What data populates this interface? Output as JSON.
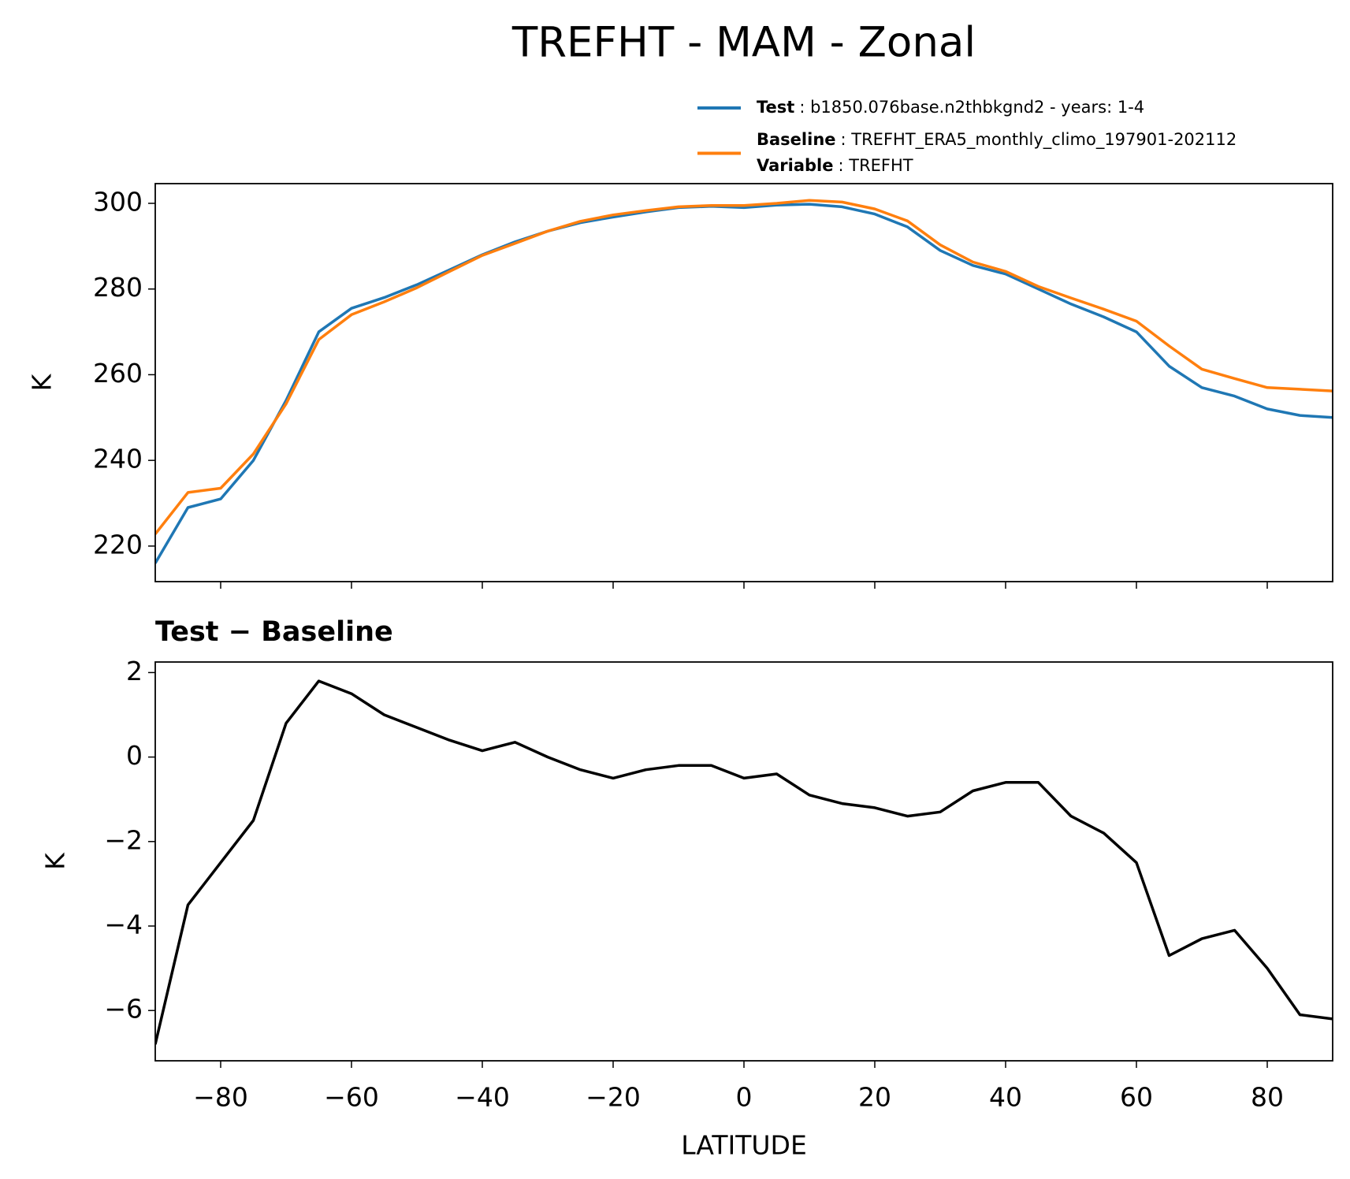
{
  "chart_data": [
    {
      "type": "line",
      "title": "TREFHT - MAM - Zonal",
      "ylabel": "K",
      "x": [
        -90,
        -85,
        -80,
        -75,
        -70,
        -65,
        -60,
        -55,
        -50,
        -45,
        -40,
        -35,
        -30,
        -25,
        -20,
        -15,
        -10,
        -5,
        0,
        5,
        10,
        15,
        20,
        25,
        30,
        35,
        40,
        45,
        50,
        55,
        60,
        65,
        70,
        75,
        80,
        85,
        90
      ],
      "series": [
        {
          "name": "Test",
          "legend": [
            [
              "Test",
              ": b1850.076base.n2thbkgnd2 - years: 1-4"
            ]
          ],
          "color": "#1f77b4",
          "values": [
            216,
            229,
            231,
            240,
            254,
            270,
            275.5,
            278,
            281,
            284.5,
            288,
            291,
            293.5,
            295.5,
            296.8,
            298,
            299,
            299.3,
            299,
            299.6,
            299.8,
            299.2,
            297.5,
            294.5,
            289,
            285.5,
            283.5,
            280,
            276.5,
            273.5,
            270,
            262,
            257,
            255,
            252,
            250.5,
            250
          ]
        },
        {
          "name": "Baseline",
          "legend": [
            [
              "Baseline",
              ": TREFHT_ERA5_monthly_climo_197901-202112"
            ],
            [
              "Variable",
              ": TREFHT"
            ]
          ],
          "color": "#ff7f0e",
          "values": [
            222.8,
            232.5,
            233.5,
            241.5,
            253.2,
            268.2,
            274,
            277,
            280.3,
            284.1,
            287.85,
            290.65,
            293.5,
            295.8,
            297.3,
            298.3,
            299.2,
            299.5,
            299.5,
            300,
            300.7,
            300.3,
            298.7,
            295.9,
            290.3,
            286.3,
            284.1,
            280.6,
            277.9,
            275.3,
            272.5,
            266.7,
            261.3,
            259.1,
            257,
            256.6,
            256.2
          ]
        }
      ],
      "xlim": [
        -90,
        90
      ],
      "ylim": [
        211.7,
        304.6
      ],
      "yticks": [
        220,
        240,
        260,
        280,
        300
      ]
    },
    {
      "type": "line",
      "title": "Test − Baseline",
      "ylabel": "K",
      "xlabel": "LATITUDE",
      "x": [
        -90,
        -85,
        -80,
        -75,
        -70,
        -65,
        -60,
        -55,
        -50,
        -45,
        -40,
        -35,
        -30,
        -25,
        -20,
        -15,
        -10,
        -5,
        0,
        5,
        10,
        15,
        20,
        25,
        30,
        35,
        40,
        45,
        50,
        55,
        60,
        65,
        70,
        75,
        80,
        85,
        90
      ],
      "series": [
        {
          "color": "#000000",
          "values": [
            -6.8,
            -3.5,
            -2.5,
            -1.5,
            0.8,
            1.8,
            1.5,
            1.0,
            0.7,
            0.4,
            0.15,
            0.35,
            0.0,
            -0.3,
            -0.5,
            -0.3,
            -0.2,
            -0.2,
            -0.5,
            -0.4,
            -0.9,
            -1.1,
            -1.2,
            -1.4,
            -1.3,
            -0.8,
            -0.6,
            -0.6,
            -1.4,
            -1.8,
            -2.5,
            -4.7,
            -4.3,
            -4.1,
            -5.0,
            -6.1,
            -6.2
          ]
        }
      ],
      "xlim": [
        -90,
        90
      ],
      "ylim": [
        -7.19,
        2.25
      ],
      "xticks": [
        {
          "value": -80,
          "label": "−80"
        },
        {
          "value": -60,
          "label": "−60"
        },
        {
          "value": -40,
          "label": "−40"
        },
        {
          "value": -20,
          "label": "−20"
        },
        0,
        20,
        40,
        60,
        80
      ],
      "yticks": [
        {
          "value": -6,
          "label": "−6"
        },
        {
          "value": -4,
          "label": "−4"
        },
        {
          "value": -2,
          "label": "−2"
        },
        0,
        2
      ]
    }
  ]
}
